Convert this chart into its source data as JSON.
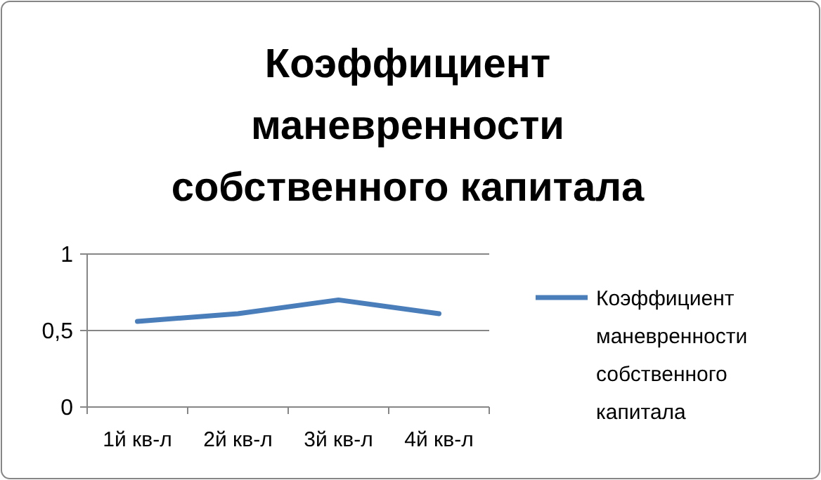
{
  "chart_data": {
    "type": "line",
    "title": "Коэффициент маневренности собственного капитала",
    "categories": [
      "1й кв-л",
      "2й кв-л",
      "3й кв-л",
      "4й кв-л"
    ],
    "series": [
      {
        "name": "Коэффициент маневренности собственного капитала",
        "color": "#4a7ebb",
        "values": [
          0.56,
          0.61,
          0.7,
          0.61
        ]
      }
    ],
    "ylim": [
      0,
      1
    ],
    "yticks": [
      0,
      {
        "value": 0.5,
        "label": "0,5"
      },
      1
    ],
    "grid": "y",
    "legend": "right",
    "marker": "none"
  }
}
